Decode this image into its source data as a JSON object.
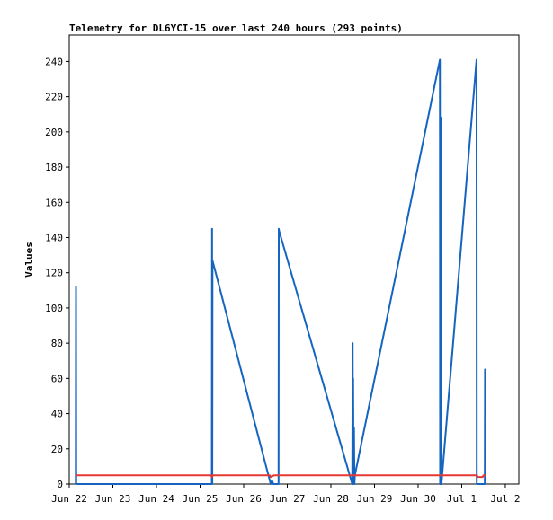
{
  "chart_data": {
    "type": "line",
    "title": "Telemetry for DL6YCI-15 over last 240 hours (293 points)",
    "ylabel": "Values",
    "xlabel": "",
    "ylim": [
      0,
      255
    ],
    "xlim": [
      0,
      10.31
    ],
    "yticks": [
      0,
      20,
      40,
      60,
      80,
      100,
      120,
      140,
      160,
      180,
      200,
      220,
      240
    ],
    "xticks": [
      {
        "label": "Jun 22",
        "x": 0
      },
      {
        "label": "Jun 23",
        "x": 1
      },
      {
        "label": "Jun 24",
        "x": 2
      },
      {
        "label": "Jun 25",
        "x": 3
      },
      {
        "label": "Jun 26",
        "x": 4
      },
      {
        "label": "Jun 27",
        "x": 5
      },
      {
        "label": "Jun 28",
        "x": 6
      },
      {
        "label": "Jun 29",
        "x": 7
      },
      {
        "label": "Jun 30",
        "x": 8
      },
      {
        "label": "Jul 1",
        "x": 9
      },
      {
        "label": "Jul 2",
        "x": 10
      }
    ],
    "grid": false,
    "series": [
      {
        "color": "#1565c0",
        "points": [
          [
            0.15,
            0
          ],
          [
            0.155,
            112
          ],
          [
            0.16,
            0
          ],
          [
            3.27,
            0
          ],
          [
            3.275,
            145
          ],
          [
            3.28,
            0
          ],
          [
            3.285,
            127
          ],
          [
            4.62,
            0
          ],
          [
            4.65,
            2
          ],
          [
            4.68,
            0
          ],
          [
            4.8,
            0
          ],
          [
            4.805,
            145
          ],
          [
            4.81,
            144
          ],
          [
            6.49,
            0
          ],
          [
            6.5,
            80
          ],
          [
            6.505,
            0
          ],
          [
            6.51,
            60
          ],
          [
            6.52,
            0
          ],
          [
            6.53,
            32
          ],
          [
            6.54,
            0
          ],
          [
            6.55,
            5
          ],
          [
            8.5,
            241
          ],
          [
            8.505,
            0
          ],
          [
            8.51,
            128
          ],
          [
            8.515,
            0
          ],
          [
            8.52,
            65
          ],
          [
            8.525,
            0
          ],
          [
            8.53,
            208
          ],
          [
            8.535,
            0
          ],
          [
            9.34,
            241
          ],
          [
            9.345,
            0
          ],
          [
            9.35,
            0
          ],
          [
            9.53,
            0
          ],
          [
            9.535,
            65
          ],
          [
            9.54,
            64
          ],
          [
            9.545,
            0
          ]
        ]
      },
      {
        "color": "#e53935",
        "points": [
          [
            0.15,
            5
          ],
          [
            3.25,
            5
          ],
          [
            3.27,
            4
          ],
          [
            3.3,
            5
          ],
          [
            4.6,
            5
          ],
          [
            4.62,
            4
          ],
          [
            4.7,
            5
          ],
          [
            9.35,
            5
          ],
          [
            9.37,
            4
          ],
          [
            9.48,
            4
          ],
          [
            9.5,
            5
          ],
          [
            9.55,
            5
          ]
        ]
      }
    ]
  }
}
